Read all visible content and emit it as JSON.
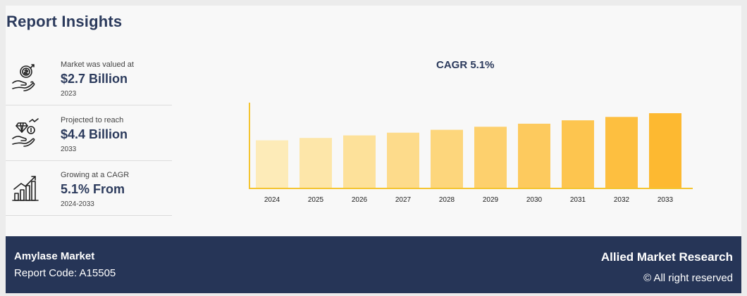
{
  "header": {
    "title": "Report Insights"
  },
  "metrics": [
    {
      "label": "Market was valued at",
      "value": "$2.7 Billion",
      "sub": "2023",
      "icon": "money-hand-icon"
    },
    {
      "label": "Projected to reach",
      "value": "$4.4 Billion",
      "sub": "2033",
      "icon": "diamond-hand-icon"
    },
    {
      "label": "Growing at a CAGR",
      "value": "5.1% From",
      "sub": "2024-2033",
      "icon": "growth-chart-icon"
    }
  ],
  "chart_data": {
    "type": "bar",
    "title": "CAGR 5.1%",
    "categories": [
      "2024",
      "2025",
      "2026",
      "2027",
      "2028",
      "2029",
      "2030",
      "2031",
      "2032",
      "2033"
    ],
    "values": [
      2.84,
      2.98,
      3.13,
      3.29,
      3.46,
      3.64,
      3.82,
      4.02,
      4.22,
      4.44
    ],
    "xlabel": "",
    "ylabel": "",
    "ylim": [
      0,
      4.44
    ],
    "grid": false,
    "colors": [
      "#fdebb8",
      "#fde6a9",
      "#fde19a",
      "#fddb8b",
      "#fdd67c",
      "#fdd06d",
      "#fdca5e",
      "#fdc54f",
      "#fdbf40",
      "#fdb931"
    ],
    "axis_color": "#f4c430"
  },
  "footer": {
    "market": "Amylase Market",
    "report_code": "Report Code: A15505",
    "brand": "Allied Market Research",
    "rights": "© All right reserved"
  }
}
